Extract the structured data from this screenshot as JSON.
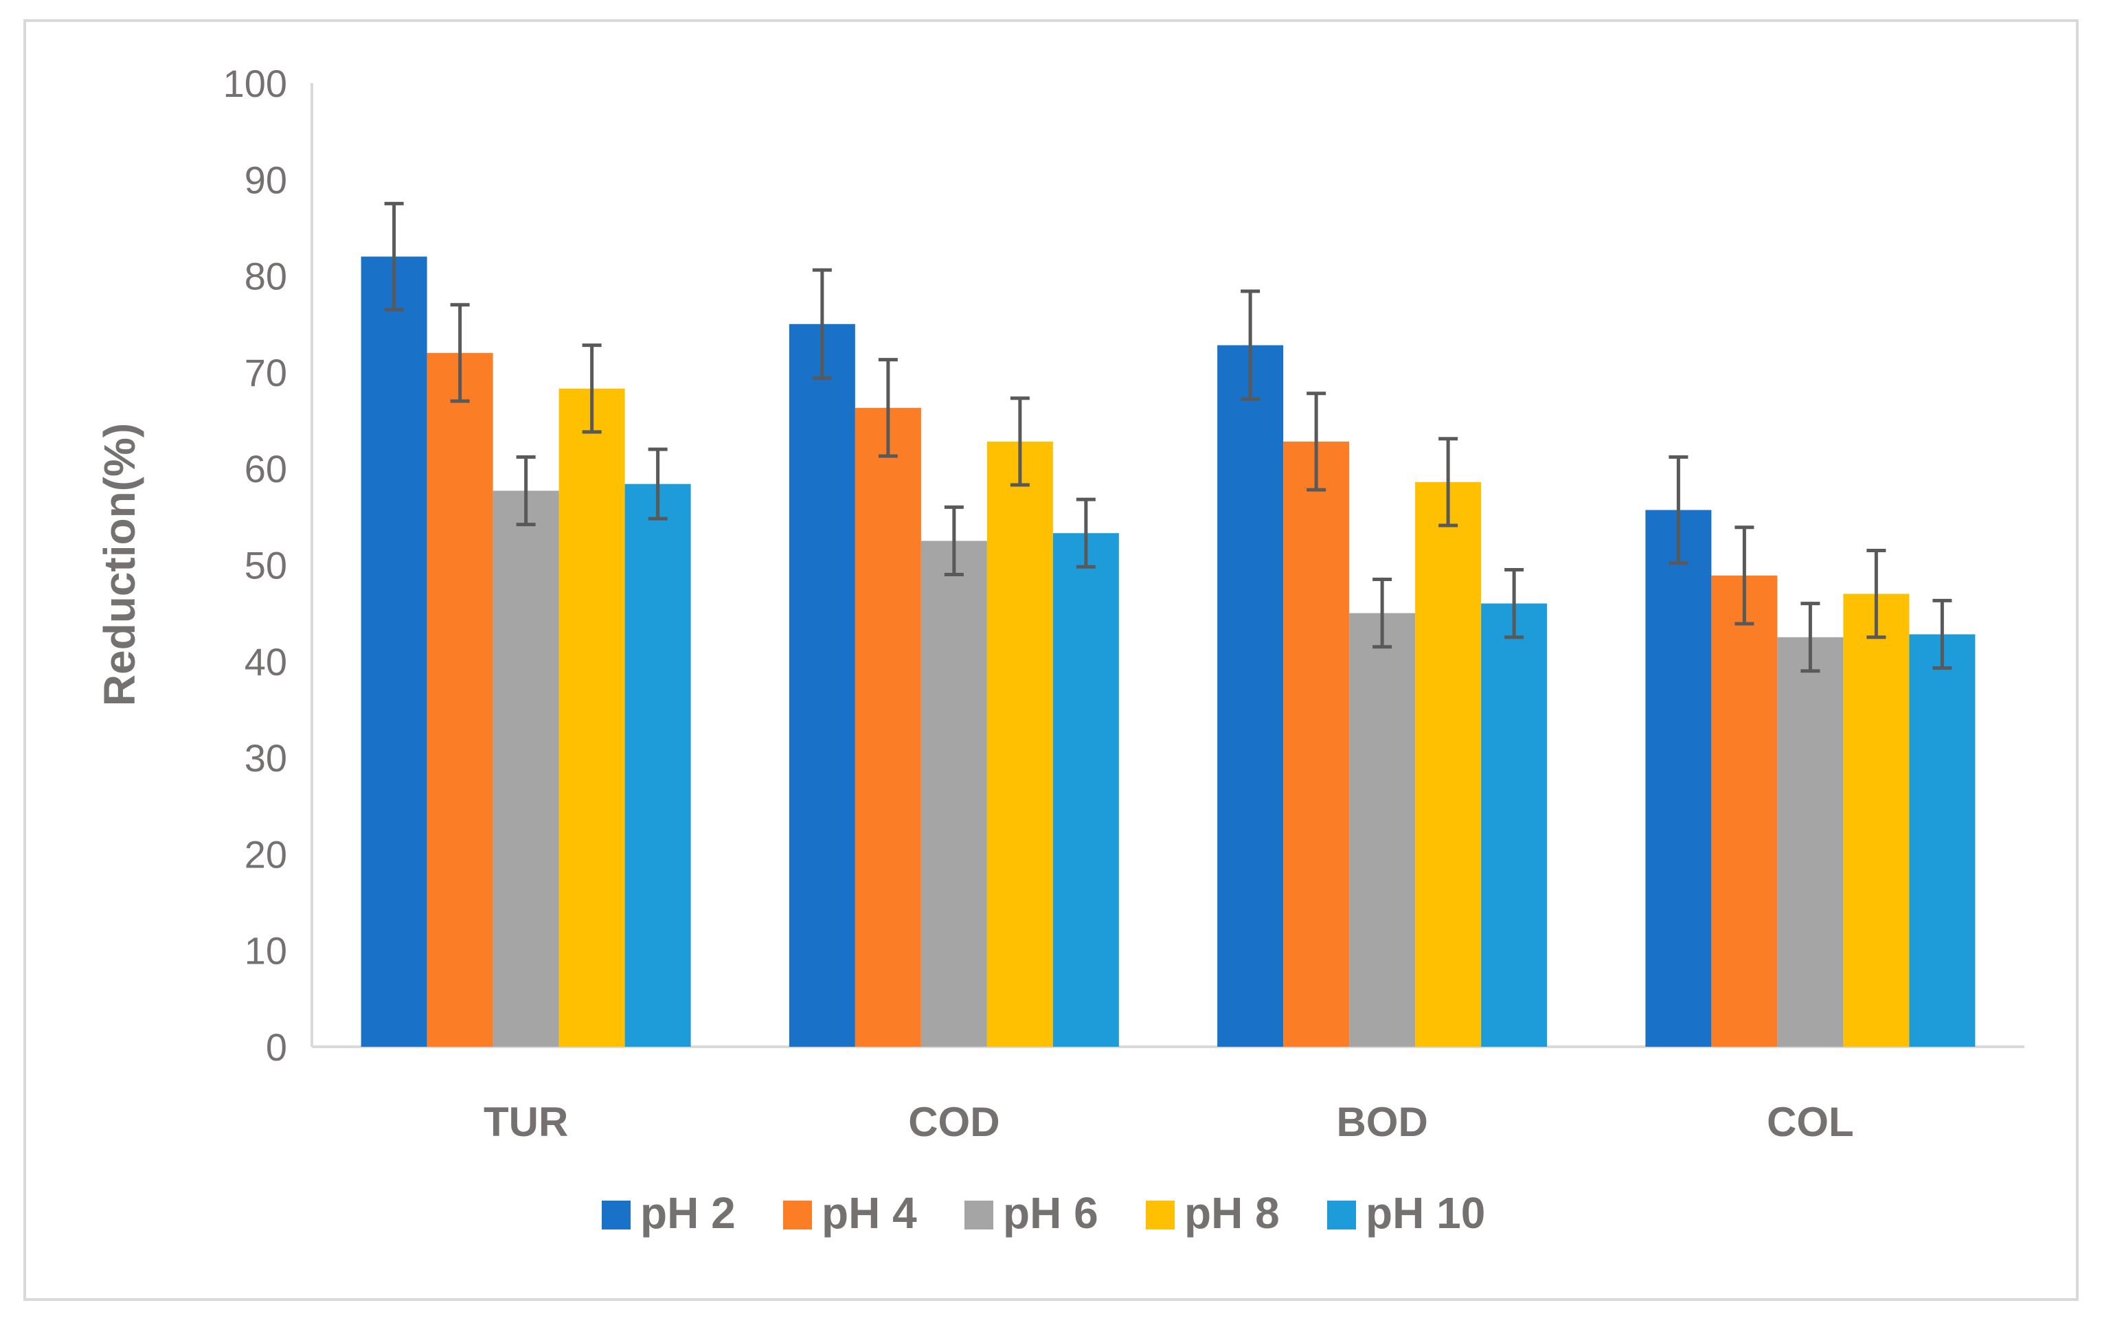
{
  "chart_data": {
    "type": "bar",
    "title": "",
    "xlabel": "",
    "ylabel": "Reduction(%)",
    "ylim": [
      0,
      100
    ],
    "yticks": [
      0,
      10,
      20,
      30,
      40,
      50,
      60,
      70,
      80,
      90,
      100
    ],
    "grid": false,
    "legend_position": "bottom",
    "categories": [
      "TUR",
      "COD",
      "BOD",
      "COL"
    ],
    "series": [
      {
        "name": "pH 2",
        "color": "#1a71c8",
        "values": [
          82,
          75,
          72.8,
          55.7
        ],
        "errors": [
          5.5,
          5.6,
          5.6,
          5.5
        ]
      },
      {
        "name": "pH 4",
        "color": "#fb7d26",
        "values": [
          72,
          66.3,
          62.8,
          48.9
        ],
        "errors": [
          5.0,
          5.0,
          5.0,
          5.0
        ]
      },
      {
        "name": "pH 6",
        "color": "#a5a5a5",
        "values": [
          57.7,
          52.5,
          45,
          42.5
        ],
        "errors": [
          3.5,
          3.5,
          3.5,
          3.5
        ]
      },
      {
        "name": "pH 8",
        "color": "#fec000",
        "values": [
          68.3,
          62.8,
          58.6,
          47
        ],
        "errors": [
          4.5,
          4.5,
          4.5,
          4.5
        ]
      },
      {
        "name": "pH 10",
        "color": "#1e9bd9",
        "values": [
          58.4,
          53.3,
          46,
          42.8
        ],
        "errors": [
          3.6,
          3.5,
          3.5,
          3.5
        ]
      }
    ]
  }
}
